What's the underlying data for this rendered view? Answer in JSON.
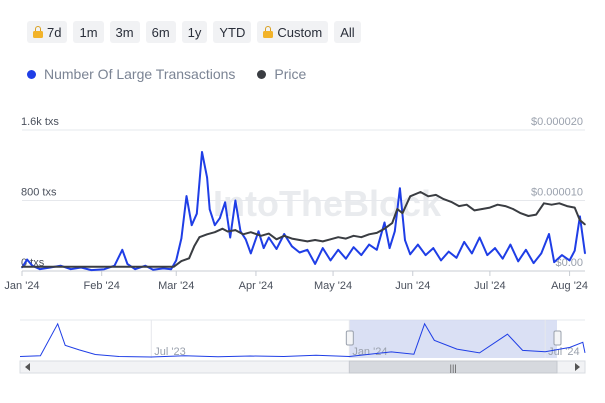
{
  "range_buttons": [
    {
      "label": "7d",
      "locked": true
    },
    {
      "label": "1m",
      "locked": false
    },
    {
      "label": "3m",
      "locked": false
    },
    {
      "label": "6m",
      "locked": false
    },
    {
      "label": "1y",
      "locked": false
    },
    {
      "label": "YTD",
      "locked": false
    },
    {
      "label": "Custom",
      "locked": true
    },
    {
      "label": "All",
      "locked": false
    }
  ],
  "legend": [
    {
      "label": "Number Of Large Transactions",
      "color": "#1f3ee6"
    },
    {
      "label": "Price",
      "color": "#3a3d42"
    }
  ],
  "watermark": "IntoTheBlock",
  "colors": {
    "transactions": "#1f3ee6",
    "price": "#3a3d42",
    "navigator_fill": "#cdd6f0",
    "grid": "#e6e8ec"
  },
  "chart_data": {
    "type": "line",
    "x_ticks": [
      "Jan '24",
      "Feb '24",
      "Mar '24",
      "Apr '24",
      "May '24",
      "Jun '24",
      "Jul '24",
      "Aug '24"
    ],
    "x_range": [
      "2024-01-01",
      "2024-08-07"
    ],
    "left_axis": {
      "ticks": [
        "1.6k txs",
        "800 txs",
        "0 txs"
      ],
      "ylim": [
        0,
        1600
      ],
      "tick_values": [
        1600,
        800,
        0
      ]
    },
    "right_axis": {
      "ticks": [
        "$0.000020",
        "$0.000010",
        "$0.00"
      ],
      "ylim": [
        0,
        2e-05
      ],
      "tick_values": [
        2e-05,
        1e-05,
        0
      ]
    },
    "series": [
      {
        "name": "Number Of Large Transactions",
        "axis": "left",
        "points": [
          [
            "2024-01-01",
            40
          ],
          [
            "2024-01-03",
            130
          ],
          [
            "2024-01-05",
            60
          ],
          [
            "2024-01-08",
            20
          ],
          [
            "2024-01-12",
            40
          ],
          [
            "2024-01-16",
            60
          ],
          [
            "2024-01-20",
            20
          ],
          [
            "2024-01-24",
            40
          ],
          [
            "2024-01-28",
            10
          ],
          [
            "2024-02-02",
            20
          ],
          [
            "2024-02-06",
            60
          ],
          [
            "2024-02-09",
            240
          ],
          [
            "2024-02-11",
            80
          ],
          [
            "2024-02-14",
            20
          ],
          [
            "2024-02-18",
            60
          ],
          [
            "2024-02-21",
            15
          ],
          [
            "2024-02-25",
            30
          ],
          [
            "2024-02-28",
            20
          ],
          [
            "2024-03-01",
            120
          ],
          [
            "2024-03-03",
            370
          ],
          [
            "2024-03-05",
            850
          ],
          [
            "2024-03-07",
            520
          ],
          [
            "2024-03-09",
            650
          ],
          [
            "2024-03-11",
            1350
          ],
          [
            "2024-03-13",
            1060
          ],
          [
            "2024-03-14",
            700
          ],
          [
            "2024-03-16",
            520
          ],
          [
            "2024-03-18",
            600
          ],
          [
            "2024-03-20",
            780
          ],
          [
            "2024-03-22",
            380
          ],
          [
            "2024-03-24",
            800
          ],
          [
            "2024-03-26",
            450
          ],
          [
            "2024-03-28",
            360
          ],
          [
            "2024-03-30",
            200
          ],
          [
            "2024-04-02",
            450
          ],
          [
            "2024-04-04",
            260
          ],
          [
            "2024-04-06",
            380
          ],
          [
            "2024-04-09",
            250
          ],
          [
            "2024-04-12",
            420
          ],
          [
            "2024-04-15",
            280
          ],
          [
            "2024-04-18",
            210
          ],
          [
            "2024-04-21",
            240
          ],
          [
            "2024-04-24",
            80
          ],
          [
            "2024-04-27",
            260
          ],
          [
            "2024-04-30",
            120
          ],
          [
            "2024-05-03",
            240
          ],
          [
            "2024-05-06",
            140
          ],
          [
            "2024-05-09",
            270
          ],
          [
            "2024-05-12",
            180
          ],
          [
            "2024-05-15",
            300
          ],
          [
            "2024-05-18",
            240
          ],
          [
            "2024-05-21",
            550
          ],
          [
            "2024-05-23",
            260
          ],
          [
            "2024-05-25",
            450
          ],
          [
            "2024-05-27",
            940
          ],
          [
            "2024-05-29",
            350
          ],
          [
            "2024-05-31",
            190
          ],
          [
            "2024-06-03",
            300
          ],
          [
            "2024-06-06",
            180
          ],
          [
            "2024-06-09",
            260
          ],
          [
            "2024-06-12",
            120
          ],
          [
            "2024-06-15",
            220
          ],
          [
            "2024-06-18",
            150
          ],
          [
            "2024-06-21",
            330
          ],
          [
            "2024-06-24",
            200
          ],
          [
            "2024-06-27",
            380
          ],
          [
            "2024-06-30",
            180
          ],
          [
            "2024-07-03",
            260
          ],
          [
            "2024-07-06",
            140
          ],
          [
            "2024-07-09",
            300
          ],
          [
            "2024-07-12",
            110
          ],
          [
            "2024-07-15",
            240
          ],
          [
            "2024-07-18",
            90
          ],
          [
            "2024-07-21",
            200
          ],
          [
            "2024-07-24",
            420
          ],
          [
            "2024-07-26",
            100
          ],
          [
            "2024-07-29",
            180
          ],
          [
            "2024-08-01",
            120
          ],
          [
            "2024-08-03",
            230
          ],
          [
            "2024-08-05",
            620
          ],
          [
            "2024-08-07",
            200
          ]
        ]
      },
      {
        "name": "Price",
        "axis": "right",
        "points": [
          [
            "2024-01-01",
            6e-07
          ],
          [
            "2024-02-29",
            6e-07
          ],
          [
            "2024-03-03",
            1.4e-06
          ],
          [
            "2024-03-06",
            1.8e-06
          ],
          [
            "2024-03-08",
            3.5e-06
          ],
          [
            "2024-03-10",
            4.8e-06
          ],
          [
            "2024-03-13",
            5.2e-06
          ],
          [
            "2024-03-16",
            5.5e-06
          ],
          [
            "2024-03-19",
            6e-06
          ],
          [
            "2024-03-21",
            5.6e-06
          ],
          [
            "2024-03-24",
            5.8e-06
          ],
          [
            "2024-03-27",
            5.2e-06
          ],
          [
            "2024-03-30",
            5.5e-06
          ],
          [
            "2024-04-03",
            5e-06
          ],
          [
            "2024-04-06",
            5.3e-06
          ],
          [
            "2024-04-09",
            4.5e-06
          ],
          [
            "2024-04-12",
            5e-06
          ],
          [
            "2024-04-15",
            4.6e-06
          ],
          [
            "2024-04-18",
            4.4e-06
          ],
          [
            "2024-04-21",
            4.2e-06
          ],
          [
            "2024-04-24",
            4.4e-06
          ],
          [
            "2024-04-27",
            4.2e-06
          ],
          [
            "2024-04-30",
            4.5e-06
          ],
          [
            "2024-05-03",
            4.8e-06
          ],
          [
            "2024-05-06",
            4.6e-06
          ],
          [
            "2024-05-09",
            5e-06
          ],
          [
            "2024-05-12",
            4.8e-06
          ],
          [
            "2024-05-15",
            5.2e-06
          ],
          [
            "2024-05-18",
            5.4e-06
          ],
          [
            "2024-05-21",
            6e-06
          ],
          [
            "2024-05-24",
            6.8e-06
          ],
          [
            "2024-05-26",
            8.8e-06
          ],
          [
            "2024-05-28",
            8.2e-06
          ],
          [
            "2024-05-31",
            1.06e-05
          ],
          [
            "2024-06-04",
            1.12e-05
          ],
          [
            "2024-06-07",
            1.06e-05
          ],
          [
            "2024-06-10",
            1.08e-05
          ],
          [
            "2024-06-13",
            1.02e-05
          ],
          [
            "2024-06-16",
            9.8e-06
          ],
          [
            "2024-06-19",
            9.2e-06
          ],
          [
            "2024-06-22",
            9.4e-06
          ],
          [
            "2024-06-25",
            8.6e-06
          ],
          [
            "2024-06-28",
            8.8e-06
          ],
          [
            "2024-07-01",
            9e-06
          ],
          [
            "2024-07-04",
            9.4e-06
          ],
          [
            "2024-07-07",
            9.2e-06
          ],
          [
            "2024-07-10",
            8.8e-06
          ],
          [
            "2024-07-13",
            8.2e-06
          ],
          [
            "2024-07-16",
            7.8e-06
          ],
          [
            "2024-07-19",
            8e-06
          ],
          [
            "2024-07-22",
            9.6e-06
          ],
          [
            "2024-07-25",
            9.4e-06
          ],
          [
            "2024-07-28",
            9.6e-06
          ],
          [
            "2024-07-31",
            9.2e-06
          ],
          [
            "2024-08-03",
            9e-06
          ],
          [
            "2024-08-05",
            7.2e-06
          ],
          [
            "2024-08-07",
            6.6e-06
          ]
        ]
      }
    ],
    "navigator": {
      "labels": [
        "Jul '23",
        "Jan '24",
        "Jul '24"
      ],
      "x_range": [
        "2023-03-01",
        "2024-08-07"
      ],
      "selected_range": [
        "2024-01-01",
        "2024-08-07"
      ],
      "points": [
        [
          "2023-03-01",
          60
        ],
        [
          "2023-03-20",
          90
        ],
        [
          "2023-04-05",
          1350
        ],
        [
          "2023-04-12",
          500
        ],
        [
          "2023-04-25",
          320
        ],
        [
          "2023-05-10",
          140
        ],
        [
          "2023-06-01",
          60
        ],
        [
          "2023-07-01",
          40
        ],
        [
          "2023-08-01",
          90
        ],
        [
          "2023-09-01",
          50
        ],
        [
          "2023-10-01",
          80
        ],
        [
          "2023-11-01",
          60
        ],
        [
          "2023-12-01",
          110
        ],
        [
          "2024-01-01",
          60
        ],
        [
          "2024-02-09",
          240
        ],
        [
          "2024-03-01",
          150
        ],
        [
          "2024-03-11",
          1350
        ],
        [
          "2024-03-20",
          700
        ],
        [
          "2024-04-10",
          350
        ],
        [
          "2024-05-01",
          200
        ],
        [
          "2024-05-27",
          940
        ],
        [
          "2024-06-10",
          300
        ],
        [
          "2024-07-01",
          250
        ],
        [
          "2024-07-24",
          420
        ],
        [
          "2024-08-05",
          620
        ],
        [
          "2024-08-07",
          200
        ]
      ]
    }
  }
}
